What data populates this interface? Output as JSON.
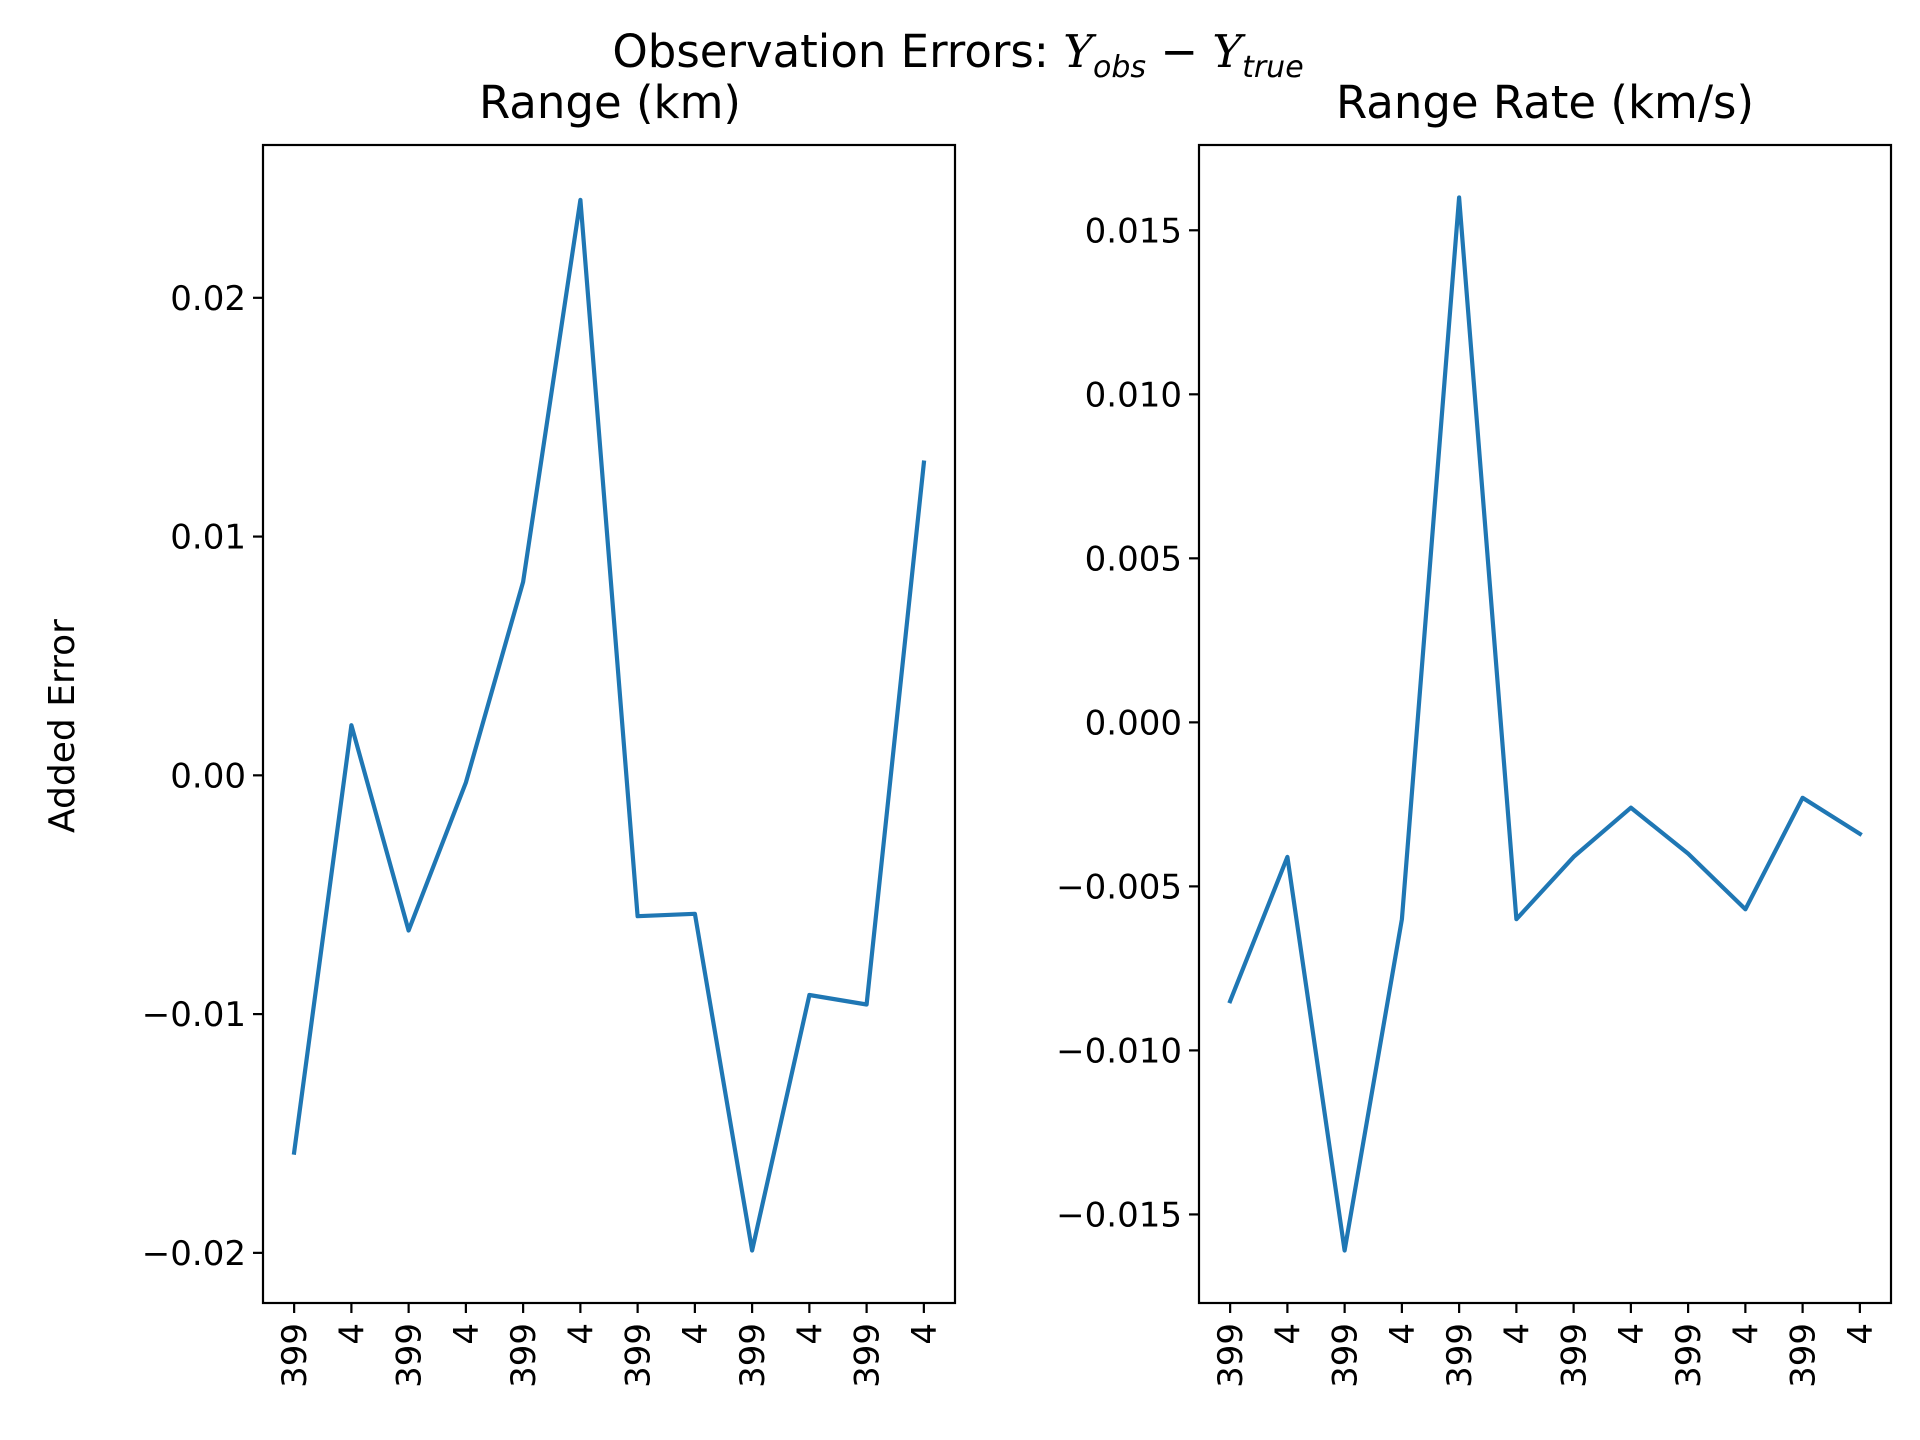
{
  "figure": {
    "title_main": "Observation Errors: ",
    "title_math_y1": "Y",
    "title_math_sub1": "obs",
    "title_math_minus": " − ",
    "title_math_y2": "Y",
    "title_math_sub2": "true"
  },
  "chart_data": [
    {
      "type": "line",
      "title": "Range (km)",
      "xlabel": "",
      "ylabel": "Added Error",
      "categories": [
        "399",
        "4",
        "399",
        "4",
        "399",
        "4",
        "399",
        "4",
        "399",
        "4",
        "399",
        "4"
      ],
      "series": [
        {
          "color": "#1f77b4",
          "values": [
            -0.0158,
            0.0021,
            -0.0065,
            -0.0003,
            0.0081,
            0.0241,
            -0.0059,
            -0.0058,
            -0.0199,
            -0.0092,
            -0.0096,
            0.0131
          ]
        }
      ],
      "ylim": [
        -0.0221,
        0.0264
      ],
      "yticks": [
        -0.02,
        -0.01,
        0.0,
        0.01,
        0.02
      ],
      "ytick_labels": [
        "−0.02",
        "−0.01",
        "0.00",
        "0.01",
        "0.02"
      ],
      "grid": false,
      "legend": "none"
    },
    {
      "type": "line",
      "title": "Range Rate (km/s)",
      "xlabel": "",
      "ylabel": "",
      "categories": [
        "399",
        "4",
        "399",
        "4",
        "399",
        "4",
        "399",
        "4",
        "399",
        "4",
        "399",
        "4"
      ],
      "series": [
        {
          "color": "#1f77b4",
          "values": [
            -0.0085,
            -0.0041,
            -0.0161,
            -0.006,
            0.016,
            -0.006,
            -0.0041,
            -0.0026,
            -0.004,
            -0.0057,
            -0.0023,
            -0.0034
          ]
        }
      ],
      "ylim": [
        -0.0177,
        0.0176
      ],
      "yticks": [
        -0.015,
        -0.01,
        -0.005,
        0.0,
        0.005,
        0.01,
        0.015
      ],
      "ytick_labels": [
        "−0.015",
        "−0.010",
        "−0.005",
        "0.000",
        "0.005",
        "0.010",
        "0.015"
      ],
      "grid": false,
      "legend": "none"
    }
  ]
}
